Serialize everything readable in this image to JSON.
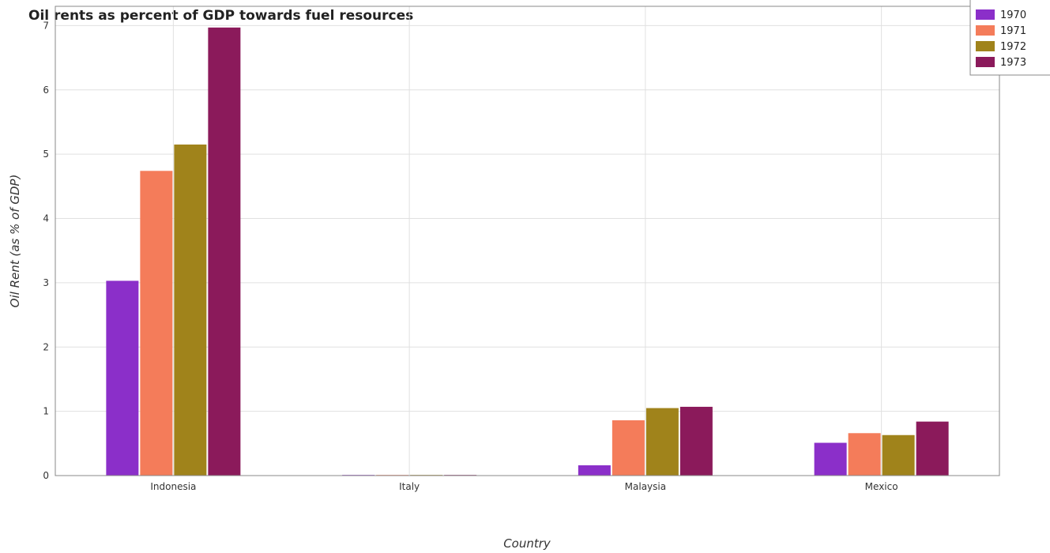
{
  "chart_data": {
    "type": "bar",
    "title": "Oil rents as percent of GDP towards fuel resources",
    "xlabel": "Country",
    "ylabel": "Oil Rent (as % of GDP)",
    "categories": [
      "Indonesia",
      "Italy",
      "Malaysia",
      "Mexico"
    ],
    "series": [
      {
        "name": "1970",
        "color": "#8b2fc9",
        "values": [
          3.03,
          0.01,
          0.16,
          0.51
        ]
      },
      {
        "name": "1971",
        "color": "#f47c5a",
        "values": [
          4.74,
          0.01,
          0.86,
          0.66
        ]
      },
      {
        "name": "1972",
        "color": "#a0831b",
        "values": [
          5.15,
          0.01,
          1.05,
          0.63
        ]
      },
      {
        "name": "1973",
        "color": "#8b1a5b",
        "values": [
          6.97,
          0.01,
          1.07,
          0.84
        ]
      }
    ],
    "ylim": [
      0,
      7.3
    ],
    "yticks": [
      0,
      1,
      2,
      3,
      4,
      5,
      6,
      7
    ],
    "grid": true,
    "legend_position": "top-right"
  }
}
